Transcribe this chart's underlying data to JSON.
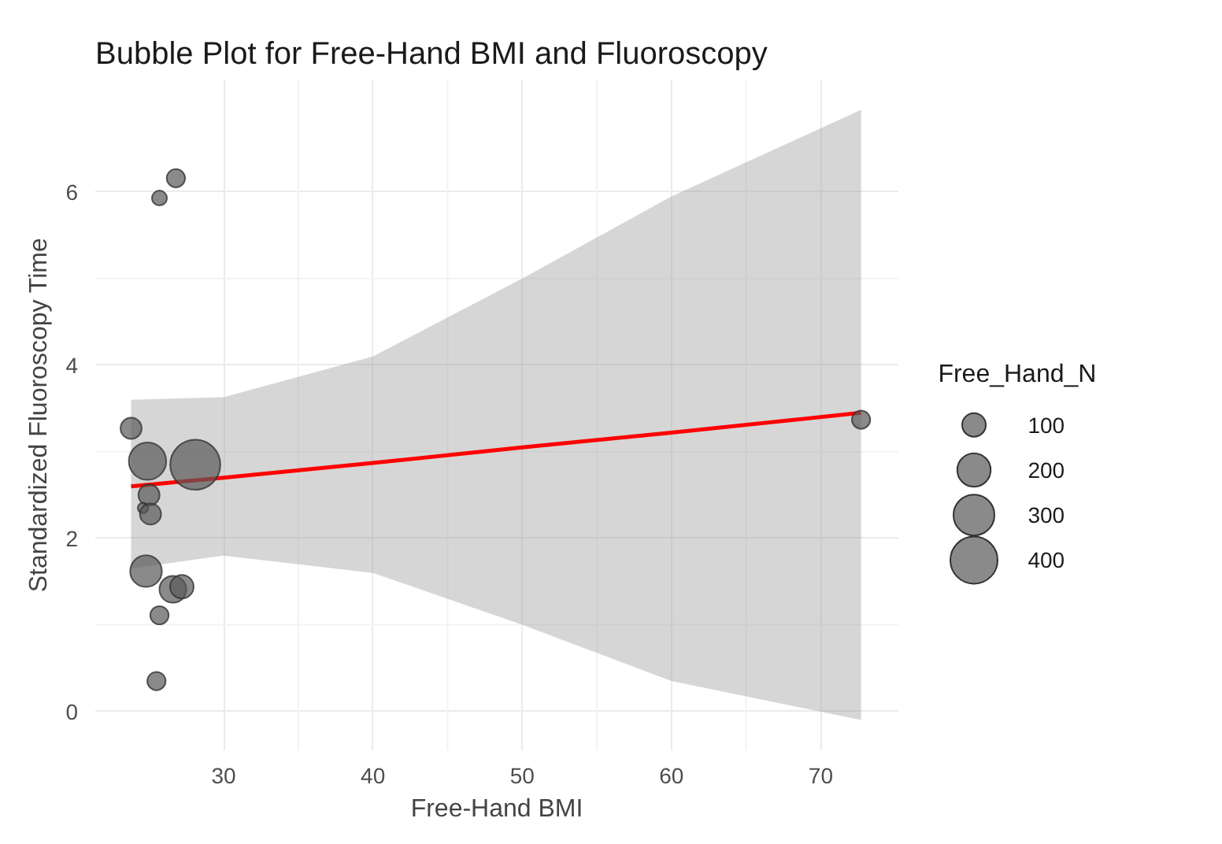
{
  "chart_data": {
    "type": "bubble",
    "title": "Bubble Plot for Free-Hand BMI and Fluoroscopy",
    "xlabel": "Free-Hand BMI",
    "ylabel": "Standardized Fluoroscopy Time",
    "legend_title": "Free_Hand_N",
    "grid": true,
    "xlim": [
      21.4,
      75.2
    ],
    "xticks": [
      30,
      40,
      50,
      60,
      70
    ],
    "ylim": [
      -0.45,
      7.3
    ],
    "yticks": [
      0,
      2,
      4,
      6
    ],
    "size_legend": [
      100,
      200,
      300,
      400
    ],
    "series": [
      {
        "color": "#595959",
        "x": [
          26.8,
          25.7,
          23.8,
          24.9,
          28.1,
          25.0,
          24.6,
          25.1,
          24.8,
          26.6,
          27.2,
          25.7,
          25.5,
          72.7
        ],
        "values": [
          6.16,
          5.93,
          3.27,
          2.89,
          2.85,
          2.5,
          2.35,
          2.28,
          1.62,
          1.41,
          1.44,
          1.11,
          0.35,
          3.37
        ],
        "sizes": [
          60,
          40,
          80,
          250,
          450,
          80,
          20,
          80,
          180,
          130,
          100,
          60,
          60,
          60
        ]
      },
      {
        "type": "line",
        "color": "#ff0000",
        "x": [
          23.8,
          30,
          40,
          50,
          60,
          72.7
        ],
        "values": [
          2.6,
          2.7,
          2.87,
          3.05,
          3.22,
          3.45
        ],
        "lower": [
          1.65,
          1.8,
          1.6,
          1.0,
          0.35,
          -0.1
        ],
        "upper": [
          3.6,
          3.63,
          4.1,
          5.0,
          5.95,
          6.95
        ]
      }
    ]
  }
}
